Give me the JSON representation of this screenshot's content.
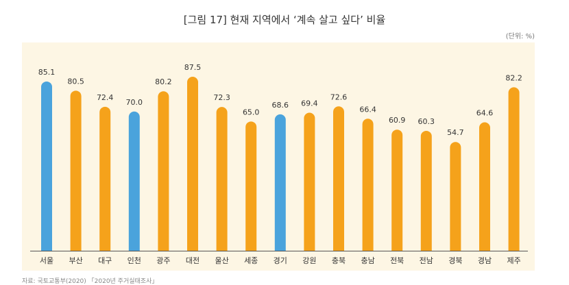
{
  "title": "[그림 17] 현재 지역에서 ‘계속 살고 싶다’ 비율",
  "unit": "(단위: %)",
  "footer": "자료: 국토교통부(2020) 「2020년 주거실태조사」",
  "colors": {
    "highlight": "#4aa3dc",
    "default": "#f5a21b",
    "panel": "#fdf6e4",
    "baseline": "#555555"
  },
  "chart_data": {
    "type": "bar",
    "title": "[그림 17] 현재 지역에서 ‘계속 살고 싶다’ 비율",
    "ylabel": "(단위: %)",
    "categories": [
      "서울",
      "부산",
      "대구",
      "인천",
      "광주",
      "대전",
      "울산",
      "세종",
      "경기",
      "강원",
      "충북",
      "충남",
      "전북",
      "전남",
      "경북",
      "경남",
      "제주"
    ],
    "values": [
      85.1,
      80.5,
      72.4,
      70.0,
      80.2,
      87.5,
      72.3,
      65.0,
      68.6,
      69.4,
      72.6,
      66.4,
      60.9,
      60.3,
      54.7,
      64.6,
      82.2
    ],
    "value_labels": [
      "85.1",
      "80.5",
      "72.4",
      "70.0",
      "80.2",
      "87.5",
      "72.3",
      "65.0",
      "68.6",
      "69.4",
      "72.6",
      "66.4",
      "60.9",
      "60.3",
      "54.7",
      "64.6",
      "82.2"
    ],
    "highlighted": [
      "서울",
      "인천",
      "경기"
    ],
    "ylim": [
      0,
      90
    ],
    "grid": false,
    "legend": "none"
  }
}
